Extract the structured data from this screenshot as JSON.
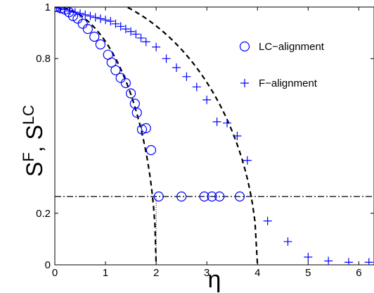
{
  "chart_data": {
    "type": "scatter",
    "xlabel": "η",
    "ylabel": "S^F, S^LC",
    "xlim": [
      0,
      6.3
    ],
    "ylim": [
      0,
      1
    ],
    "xticks": [
      0,
      1,
      2,
      3,
      4,
      5,
      6
    ],
    "yticks": [
      0,
      0.2,
      0.8,
      1
    ],
    "grid": false,
    "legend_position": "top-right",
    "colors": {
      "markers": "#0000ff",
      "lines": "#000000"
    },
    "series": [
      {
        "name": "LC−alignment",
        "marker": "circle",
        "x": [
          0.0,
          0.05,
          0.12,
          0.2,
          0.28,
          0.36,
          0.45,
          0.55,
          0.65,
          0.78,
          0.9,
          1.05,
          1.12,
          1.2,
          1.3,
          1.4,
          1.5,
          1.58,
          1.62,
          1.72,
          1.8,
          1.9,
          2.05,
          2.5,
          2.95,
          3.1,
          3.25,
          3.65
        ],
        "y": [
          1.0,
          1.0,
          0.995,
          0.99,
          0.98,
          0.965,
          0.955,
          0.935,
          0.915,
          0.885,
          0.855,
          0.815,
          0.785,
          0.755,
          0.725,
          0.705,
          0.665,
          0.625,
          0.59,
          0.525,
          0.53,
          0.445,
          0.265,
          0.265,
          0.265,
          0.265,
          0.265,
          0.265
        ]
      },
      {
        "name": "F−alignment",
        "marker": "plus",
        "x": [
          0.1,
          0.2,
          0.3,
          0.4,
          0.5,
          0.6,
          0.7,
          0.8,
          0.9,
          1.0,
          1.1,
          1.2,
          1.3,
          1.4,
          1.5,
          1.6,
          1.7,
          1.8,
          2.0,
          2.2,
          2.4,
          2.6,
          2.8,
          3.0,
          3.2,
          3.4,
          3.6,
          3.8,
          4.2,
          4.6,
          5.0,
          5.4,
          5.8,
          6.2
        ],
        "y": [
          0.995,
          0.99,
          0.985,
          0.98,
          0.975,
          0.97,
          0.965,
          0.96,
          0.955,
          0.95,
          0.945,
          0.935,
          0.925,
          0.915,
          0.905,
          0.895,
          0.88,
          0.865,
          0.845,
          0.8,
          0.765,
          0.73,
          0.69,
          0.64,
          0.555,
          0.55,
          0.5,
          0.405,
          0.17,
          0.09,
          0.03,
          0.015,
          0.01,
          0.01
        ]
      }
    ],
    "reference_lines": [
      {
        "kind": "dashed-curve",
        "x_end": 2.0,
        "y_start": 1.0
      },
      {
        "kind": "dashed-curve",
        "x_end": 4.0,
        "y_start": 1.07
      },
      {
        "kind": "horizontal-dashdot",
        "y": 0.265
      },
      {
        "kind": "vertical-dotted",
        "x": 2.0,
        "y_to": 0.265
      }
    ]
  }
}
